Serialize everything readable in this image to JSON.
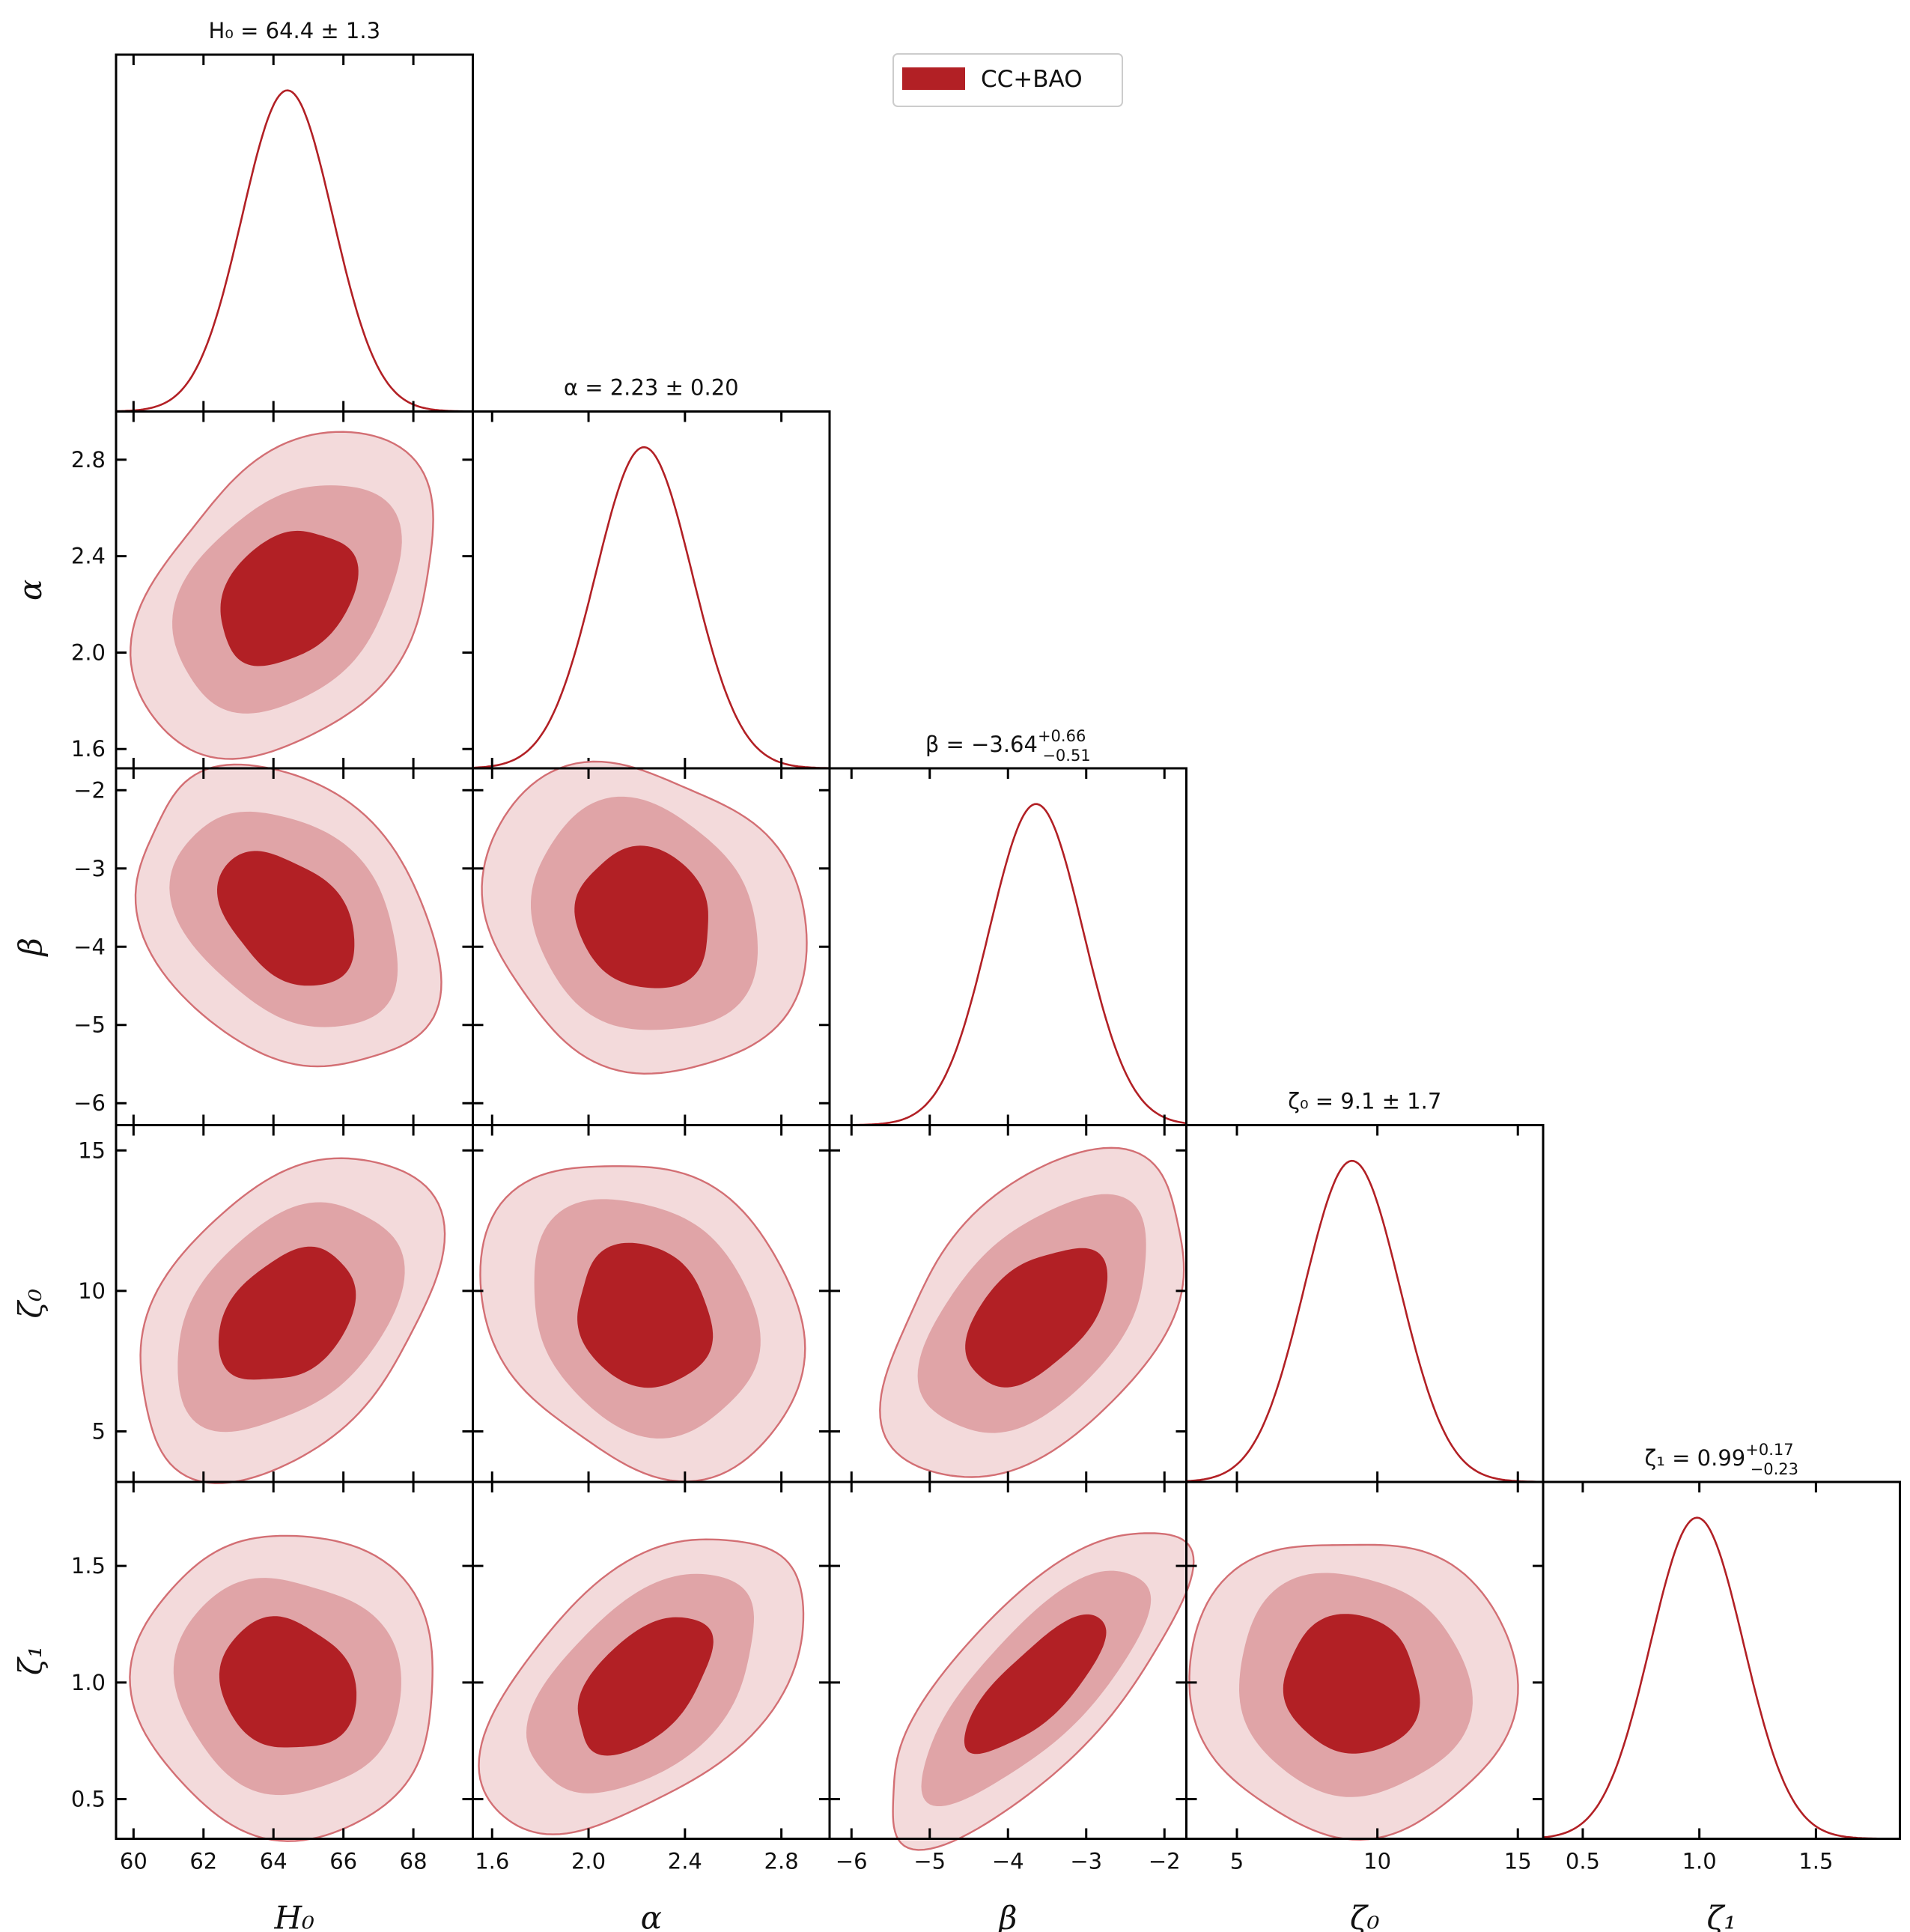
{
  "chart_data": {
    "type": "corner",
    "legend": {
      "label": "CC+BAO",
      "placement": "top-center"
    },
    "colors": {
      "line": "#b22025",
      "c1": "#b22025",
      "c2": "#e0a4a7",
      "c3": "#f3dadb",
      "edge": "#d36f74",
      "frame": "#000000"
    },
    "params": [
      {
        "key": "H0",
        "label": "H₀",
        "range": [
          59.5,
          69.7
        ],
        "ticks": [
          60,
          62,
          64,
          66,
          68
        ],
        "tick_labels": [
          "60",
          "62",
          "64",
          "66",
          "68"
        ],
        "title": "H₀ = 64.4 ± 1.3",
        "mean": 64.4,
        "sigma": 1.3
      },
      {
        "key": "alpha",
        "label": "α",
        "range": [
          1.52,
          3.0
        ],
        "ticks": [
          1.6,
          2.0,
          2.4,
          2.8
        ],
        "tick_labels": [
          "1.6",
          "2.0",
          "2.4",
          "2.8"
        ],
        "title": "α = 2.23 ± 0.20",
        "mean": 2.23,
        "sigma": 0.2
      },
      {
        "key": "beta",
        "label": "β",
        "range": [
          -6.28,
          -1.72
        ],
        "ticks": [
          -6,
          -5,
          -4,
          -3,
          -2
        ],
        "tick_labels": [
          "−6",
          "−5",
          "−4",
          "−3",
          "−2"
        ],
        "title": "β = −3.64",
        "title_sup": "+0.66",
        "title_sub": "−0.51",
        "mean": -3.64,
        "sigma": 0.6
      },
      {
        "key": "zeta0",
        "label": "ζ₀",
        "range": [
          3.2,
          15.9
        ],
        "ticks": [
          5,
          10,
          15
        ],
        "tick_labels": [
          "5",
          "10",
          "15"
        ],
        "title": "ζ₀ = 9.1 ± 1.7",
        "mean": 9.1,
        "sigma": 1.7
      },
      {
        "key": "zeta1",
        "label": "ζ₁",
        "range": [
          0.33,
          1.86
        ],
        "ticks": [
          0.5,
          1.0,
          1.5
        ],
        "tick_labels": [
          "0.5",
          "1.0",
          "1.5"
        ],
        "title": "ζ₁ = 0.99",
        "title_sup": "+0.17",
        "title_sub": "−0.23",
        "mean": 0.99,
        "sigma": 0.2
      }
    ],
    "pairs": [
      {
        "x": "H0",
        "y": "alpha",
        "rho": 0.3
      },
      {
        "x": "H0",
        "y": "beta",
        "rho": -0.35
      },
      {
        "x": "alpha",
        "y": "beta",
        "rho": -0.1
      },
      {
        "x": "H0",
        "y": "zeta0",
        "rho": 0.35
      },
      {
        "x": "alpha",
        "y": "zeta0",
        "rho": -0.15
      },
      {
        "x": "beta",
        "y": "zeta0",
        "rho": 0.45
      },
      {
        "x": "H0",
        "y": "zeta1",
        "rho": -0.1
      },
      {
        "x": "alpha",
        "y": "zeta1",
        "rho": 0.55
      },
      {
        "x": "beta",
        "y": "zeta1",
        "rho": 0.75
      },
      {
        "x": "zeta0",
        "y": "zeta1",
        "rho": 0.0
      }
    ],
    "contour_levels": [
      "68%",
      "95%",
      "99.7%"
    ]
  }
}
